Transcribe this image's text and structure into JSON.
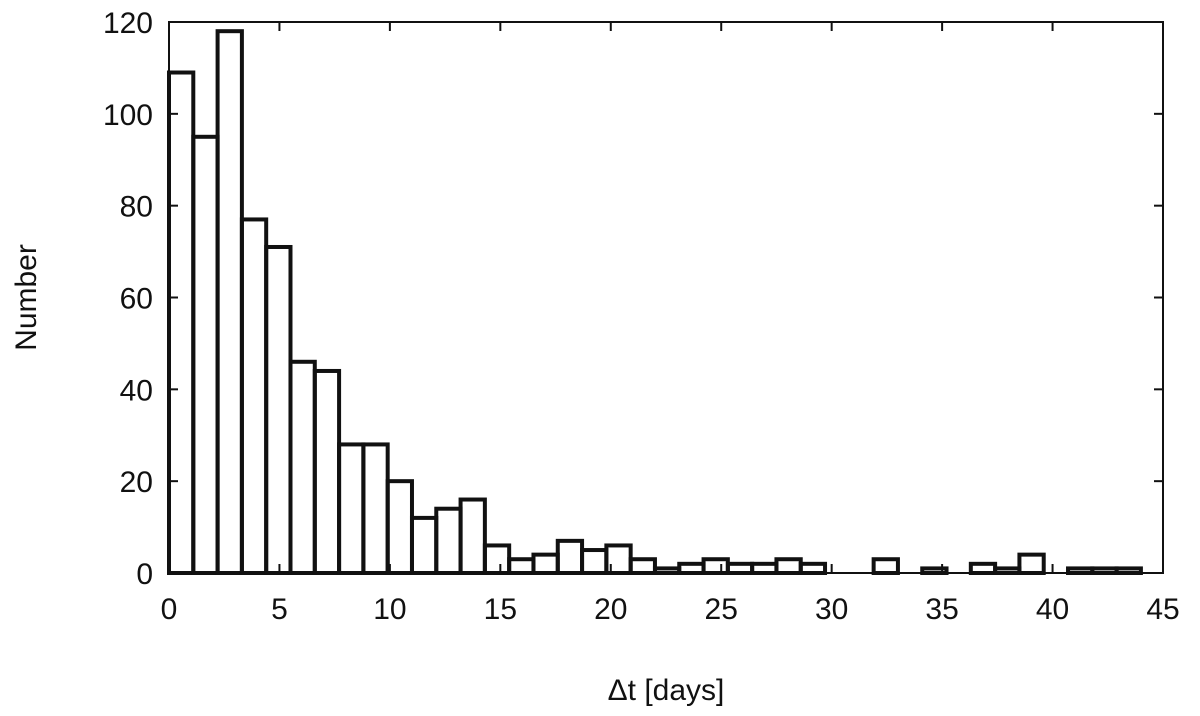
{
  "chart_data": {
    "type": "bar",
    "histogram": true,
    "xlabel": "Δt [days]",
    "ylabel": "Number",
    "xlim": [
      0,
      45
    ],
    "ylim": [
      0,
      120
    ],
    "xticks": [
      0,
      5,
      10,
      15,
      20,
      25,
      30,
      35,
      40,
      45
    ],
    "yticks": [
      0,
      20,
      40,
      60,
      80,
      100,
      120
    ],
    "grid": false,
    "bin_width": 1.1,
    "bin_edges_start": 0,
    "values": [
      109,
      95,
      118,
      77,
      71,
      46,
      44,
      28,
      28,
      20,
      12,
      14,
      16,
      6,
      3,
      4,
      7,
      5,
      6,
      3,
      1,
      2,
      3,
      2,
      2,
      3,
      2,
      0,
      0,
      3,
      0,
      1,
      0,
      2,
      1,
      4,
      0,
      1,
      1,
      1,
      0
    ],
    "line_color": "#111111"
  }
}
